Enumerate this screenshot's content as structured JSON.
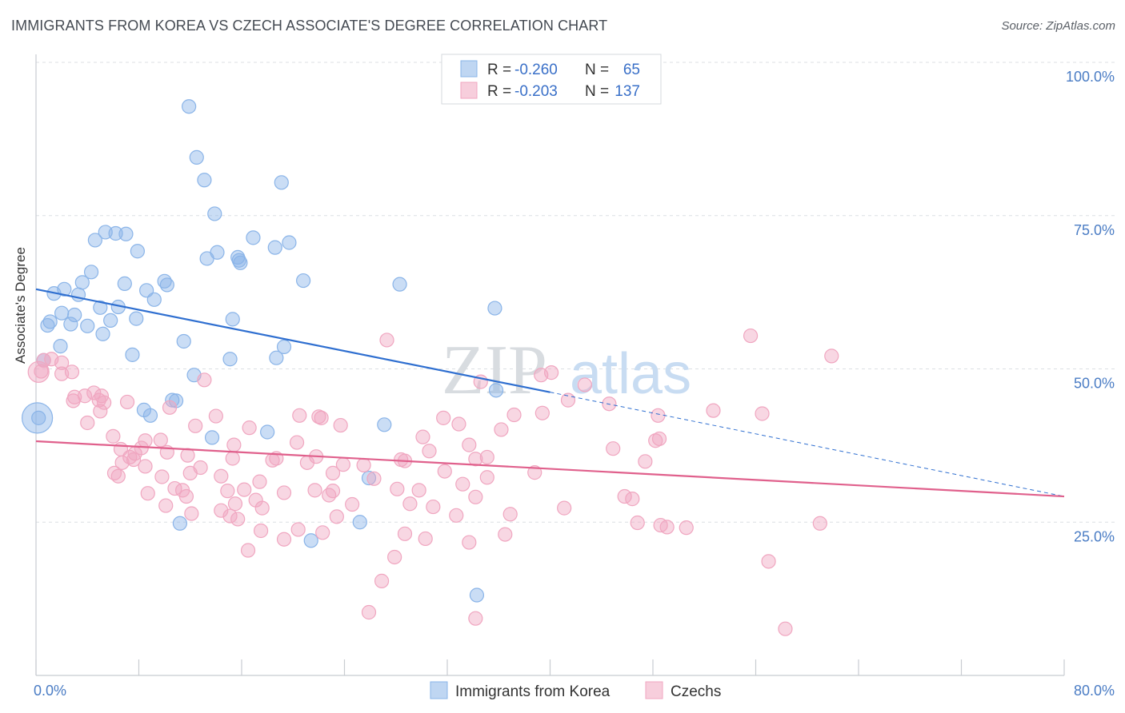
{
  "title": "IMMIGRANTS FROM KOREA VS CZECH ASSOCIATE'S DEGREE CORRELATION CHART",
  "source": "Source: ZipAtlas.com",
  "watermark": {
    "zip": "ZIP",
    "atlas": "atlas"
  },
  "chart_data": {
    "type": "scatter",
    "ylabel": "Associate's Degree",
    "xlim": [
      0,
      80
    ],
    "ylim": [
      0,
      100
    ],
    "x_tick_labels": [
      "0.0%",
      "80.0%"
    ],
    "y_tick_values": [
      25,
      50,
      75,
      100
    ],
    "y_tick_labels": [
      "25.0%",
      "50.0%",
      "75.0%",
      "100.0%"
    ],
    "grid": "horizontal dashed",
    "legend_position": "top-center",
    "series": [
      {
        "name": "Immigrants from Korea",
        "color": "#8ab4e8",
        "line_color": "#2f6fd0",
        "R": "-0.260",
        "N": "65",
        "trend": {
          "x0": 0,
          "y0": 63,
          "x1": 40,
          "y1": 46.2,
          "dash_to_x": 80,
          "dash_to_y": 29.2
        },
        "points": [
          [
            11.9,
            92.8
          ],
          [
            12.5,
            84.5
          ],
          [
            13.1,
            80.8
          ],
          [
            19.1,
            80.4
          ],
          [
            13.9,
            75.3
          ],
          [
            5.4,
            72.3
          ],
          [
            6.2,
            72.1
          ],
          [
            7.0,
            72.0
          ],
          [
            4.6,
            71.0
          ],
          [
            16.9,
            71.4
          ],
          [
            18.6,
            69.8
          ],
          [
            19.7,
            70.6
          ],
          [
            7.9,
            69.2
          ],
          [
            13.3,
            68.0
          ],
          [
            14.1,
            69.0
          ],
          [
            15.8,
            67.7
          ],
          [
            15.9,
            67.3
          ],
          [
            15.7,
            68.2
          ],
          [
            4.3,
            65.8
          ],
          [
            20.8,
            64.4
          ],
          [
            28.3,
            63.8
          ],
          [
            3.6,
            64.1
          ],
          [
            10.0,
            64.3
          ],
          [
            10.2,
            63.7
          ],
          [
            6.9,
            63.9
          ],
          [
            2.2,
            63.0
          ],
          [
            8.6,
            62.8
          ],
          [
            1.4,
            62.3
          ],
          [
            3.3,
            62.1
          ],
          [
            9.2,
            61.3
          ],
          [
            35.7,
            59.9
          ],
          [
            5.0,
            60.0
          ],
          [
            6.4,
            60.1
          ],
          [
            2.0,
            59.1
          ],
          [
            3.0,
            58.8
          ],
          [
            5.8,
            57.9
          ],
          [
            7.8,
            58.2
          ],
          [
            15.3,
            58.1
          ],
          [
            1.1,
            57.7
          ],
          [
            0.9,
            57.1
          ],
          [
            2.7,
            57.3
          ],
          [
            4.0,
            57.0
          ],
          [
            5.2,
            55.7
          ],
          [
            11.5,
            54.5
          ],
          [
            1.9,
            53.7
          ],
          [
            19.3,
            53.6
          ],
          [
            7.5,
            52.3
          ],
          [
            18.7,
            51.8
          ],
          [
            15.1,
            51.6
          ],
          [
            0.6,
            51.4
          ],
          [
            12.3,
            49.0
          ],
          [
            35.8,
            46.5
          ],
          [
            10.6,
            44.9
          ],
          [
            10.9,
            44.8
          ],
          [
            8.4,
            43.3
          ],
          [
            8.9,
            42.4
          ],
          [
            0.2,
            42.0
          ],
          [
            27.1,
            40.9
          ],
          [
            18.0,
            39.7
          ],
          [
            13.7,
            38.8
          ],
          [
            25.9,
            32.2
          ],
          [
            11.2,
            24.8
          ],
          [
            25.2,
            25.0
          ],
          [
            21.4,
            22.0
          ],
          [
            34.3,
            13.1
          ]
        ]
      },
      {
        "name": "Czechs",
        "color": "#f0a6c0",
        "line_color": "#e0608c",
        "R": "-0.203",
        "N": "137",
        "trend": {
          "x0": 0,
          "y0": 38.2,
          "x1": 80,
          "y1": 29.2
        },
        "points": [
          [
            55.6,
            55.4
          ],
          [
            27.3,
            54.7
          ],
          [
            61.9,
            52.1
          ],
          [
            0.6,
            51.4
          ],
          [
            1.2,
            51.6
          ],
          [
            2.0,
            51.0
          ],
          [
            0.4,
            49.6
          ],
          [
            2.8,
            49.5
          ],
          [
            2.0,
            49.2
          ],
          [
            40.1,
            49.4
          ],
          [
            39.3,
            49.0
          ],
          [
            13.1,
            48.2
          ],
          [
            34.6,
            47.9
          ],
          [
            42.7,
            47.4
          ],
          [
            4.5,
            46.1
          ],
          [
            5.1,
            45.6
          ],
          [
            3.0,
            45.4
          ],
          [
            3.8,
            45.6
          ],
          [
            4.9,
            44.9
          ],
          [
            5.3,
            44.5
          ],
          [
            2.9,
            44.8
          ],
          [
            7.1,
            44.6
          ],
          [
            44.6,
            44.3
          ],
          [
            41.4,
            44.9
          ],
          [
            5.0,
            43.1
          ],
          [
            10.4,
            43.7
          ],
          [
            52.7,
            43.2
          ],
          [
            56.5,
            42.7
          ],
          [
            39.4,
            42.8
          ],
          [
            48.4,
            42.4
          ],
          [
            37.2,
            42.5
          ],
          [
            14.0,
            42.3
          ],
          [
            20.5,
            42.4
          ],
          [
            22.0,
            42.2
          ],
          [
            22.2,
            42.0
          ],
          [
            31.7,
            42.0
          ],
          [
            4.0,
            41.2
          ],
          [
            32.9,
            41.0
          ],
          [
            12.4,
            40.7
          ],
          [
            16.6,
            40.4
          ],
          [
            23.7,
            40.8
          ],
          [
            36.2,
            40.1
          ],
          [
            6.0,
            39.0
          ],
          [
            30.1,
            38.9
          ],
          [
            48.5,
            38.6
          ],
          [
            48.2,
            38.3
          ],
          [
            20.3,
            38.0
          ],
          [
            8.5,
            38.3
          ],
          [
            9.7,
            38.4
          ],
          [
            15.4,
            37.6
          ],
          [
            33.7,
            37.6
          ],
          [
            6.6,
            36.9
          ],
          [
            8.2,
            37.1
          ],
          [
            44.9,
            37.0
          ],
          [
            30.6,
            36.6
          ],
          [
            7.7,
            36.2
          ],
          [
            10.2,
            36.4
          ],
          [
            11.8,
            35.9
          ],
          [
            21.8,
            35.7
          ],
          [
            35.1,
            35.6
          ],
          [
            7.3,
            35.6
          ],
          [
            7.6,
            35.2
          ],
          [
            15.3,
            35.4
          ],
          [
            28.7,
            35.0
          ],
          [
            47.4,
            34.9
          ],
          [
            18.7,
            35.4
          ],
          [
            18.4,
            35.1
          ],
          [
            21.1,
            34.7
          ],
          [
            28.4,
            35.2
          ],
          [
            34.2,
            35.3
          ],
          [
            6.7,
            34.7
          ],
          [
            23.9,
            34.4
          ],
          [
            25.5,
            34.3
          ],
          [
            8.5,
            34.1
          ],
          [
            12.8,
            33.9
          ],
          [
            31.8,
            33.3
          ],
          [
            38.8,
            33.1
          ],
          [
            6.1,
            33.0
          ],
          [
            12.0,
            33.0
          ],
          [
            23.1,
            33.0
          ],
          [
            9.8,
            32.4
          ],
          [
            14.4,
            32.5
          ],
          [
            35.1,
            32.3
          ],
          [
            6.4,
            32.5
          ],
          [
            26.3,
            32.1
          ],
          [
            17.4,
            31.6
          ],
          [
            33.2,
            31.2
          ],
          [
            10.8,
            30.5
          ],
          [
            11.4,
            30.2
          ],
          [
            14.9,
            30.1
          ],
          [
            16.2,
            30.3
          ],
          [
            23.1,
            30.1
          ],
          [
            28.1,
            30.4
          ],
          [
            29.8,
            30.2
          ],
          [
            21.7,
            30.2
          ],
          [
            19.3,
            29.8
          ],
          [
            8.7,
            29.7
          ],
          [
            11.7,
            29.2
          ],
          [
            22.8,
            29.4
          ],
          [
            34.2,
            29.1
          ],
          [
            45.8,
            29.2
          ],
          [
            46.4,
            28.8
          ],
          [
            17.1,
            28.6
          ],
          [
            15.5,
            28.0
          ],
          [
            24.6,
            27.9
          ],
          [
            29.1,
            28.0
          ],
          [
            10.1,
            27.7
          ],
          [
            17.6,
            27.3
          ],
          [
            30.9,
            27.5
          ],
          [
            14.4,
            26.9
          ],
          [
            41.1,
            27.3
          ],
          [
            36.9,
            26.3
          ],
          [
            32.7,
            26.1
          ],
          [
            12.1,
            26.4
          ],
          [
            15.1,
            26.0
          ],
          [
            23.4,
            25.9
          ],
          [
            15.7,
            25.5
          ],
          [
            46.8,
            24.9
          ],
          [
            48.6,
            24.5
          ],
          [
            61.0,
            24.8
          ],
          [
            49.1,
            24.2
          ],
          [
            50.6,
            24.1
          ],
          [
            17.5,
            23.6
          ],
          [
            36.5,
            23.0
          ],
          [
            22.3,
            23.3
          ],
          [
            28.7,
            23.1
          ],
          [
            20.4,
            23.8
          ],
          [
            19.3,
            22.2
          ],
          [
            30.3,
            22.3
          ],
          [
            33.7,
            21.7
          ],
          [
            16.5,
            20.4
          ],
          [
            27.9,
            19.3
          ],
          [
            57.0,
            18.6
          ],
          [
            26.9,
            15.4
          ],
          [
            25.9,
            10.3
          ],
          [
            34.2,
            9.3
          ],
          [
            58.3,
            7.6
          ]
        ]
      }
    ]
  }
}
